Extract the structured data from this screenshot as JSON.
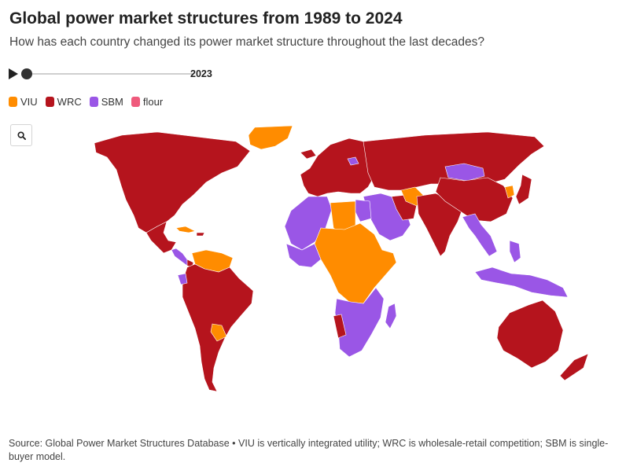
{
  "header": {
    "title": "Global power market structures from 1989 to 2024",
    "subtitle": "How has each country changed its power market structure throughout the last decades?"
  },
  "timeline": {
    "year": "2023",
    "progress": 0.0,
    "play_icon": "play-icon"
  },
  "legend": {
    "items": [
      {
        "label": "VIU",
        "color": "#ff8c00"
      },
      {
        "label": "WRC",
        "color": "#b5141d"
      },
      {
        "label": "SBM",
        "color": "#9a56e6"
      },
      {
        "label": "flour",
        "color": "#ef5a7c"
      }
    ]
  },
  "map": {
    "search_icon": "search-icon",
    "colors": {
      "VIU": "#ff8c00",
      "WRC": "#b5141d",
      "SBM": "#9a56e6",
      "nodata": "#d9d9d9"
    }
  },
  "footer": {
    "source": "Source: Global Power Market Structures Database • VIU is vertically integrated utility; WRC is wholesale-retail competition; SBM is single-buyer model."
  }
}
